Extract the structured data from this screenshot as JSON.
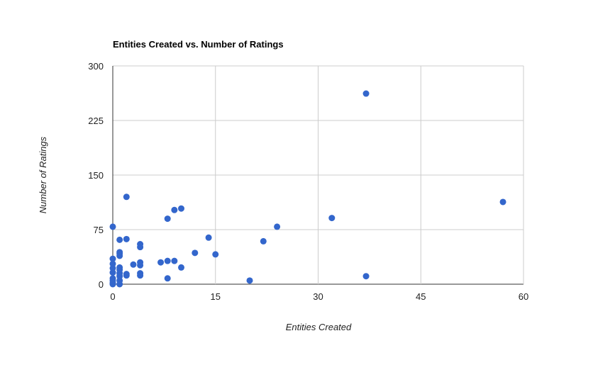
{
  "chart_data": {
    "type": "scatter",
    "title": "Entities Created vs. Number of Ratings",
    "xlabel": "Entities Created",
    "ylabel": "Number of Ratings",
    "xlim": [
      0,
      60
    ],
    "ylim": [
      0,
      300
    ],
    "x_ticks": [
      "0",
      "15",
      "30",
      "45",
      "60"
    ],
    "y_ticks": [
      "0",
      "75",
      "150",
      "225",
      "300"
    ],
    "grid": true,
    "legend": "none",
    "point_color": "#3366cc",
    "points": [
      {
        "x": 0,
        "y": 0
      },
      {
        "x": 0,
        "y": 2
      },
      {
        "x": 0,
        "y": 5
      },
      {
        "x": 0,
        "y": 8
      },
      {
        "x": 0,
        "y": 16
      },
      {
        "x": 0,
        "y": 22
      },
      {
        "x": 0,
        "y": 28
      },
      {
        "x": 0,
        "y": 35
      },
      {
        "x": 0,
        "y": 79
      },
      {
        "x": 1,
        "y": 0
      },
      {
        "x": 1,
        "y": 5
      },
      {
        "x": 1,
        "y": 11
      },
      {
        "x": 1,
        "y": 15
      },
      {
        "x": 1,
        "y": 20
      },
      {
        "x": 1,
        "y": 23
      },
      {
        "x": 1,
        "y": 39
      },
      {
        "x": 1,
        "y": 42
      },
      {
        "x": 1,
        "y": 44
      },
      {
        "x": 1,
        "y": 61
      },
      {
        "x": 2,
        "y": 12
      },
      {
        "x": 2,
        "y": 14
      },
      {
        "x": 2,
        "y": 62
      },
      {
        "x": 2,
        "y": 120
      },
      {
        "x": 3,
        "y": 27
      },
      {
        "x": 4,
        "y": 12
      },
      {
        "x": 4,
        "y": 15
      },
      {
        "x": 4,
        "y": 26
      },
      {
        "x": 4,
        "y": 30
      },
      {
        "x": 4,
        "y": 51
      },
      {
        "x": 4,
        "y": 55
      },
      {
        "x": 7,
        "y": 30
      },
      {
        "x": 8,
        "y": 8
      },
      {
        "x": 8,
        "y": 32
      },
      {
        "x": 8,
        "y": 90
      },
      {
        "x": 9,
        "y": 32
      },
      {
        "x": 9,
        "y": 102
      },
      {
        "x": 10,
        "y": 23
      },
      {
        "x": 10,
        "y": 104
      },
      {
        "x": 12,
        "y": 43
      },
      {
        "x": 14,
        "y": 64
      },
      {
        "x": 15,
        "y": 41
      },
      {
        "x": 20,
        "y": 5
      },
      {
        "x": 22,
        "y": 59
      },
      {
        "x": 24,
        "y": 79
      },
      {
        "x": 32,
        "y": 91
      },
      {
        "x": 37,
        "y": 262
      },
      {
        "x": 37,
        "y": 11
      },
      {
        "x": 57,
        "y": 113
      }
    ]
  }
}
